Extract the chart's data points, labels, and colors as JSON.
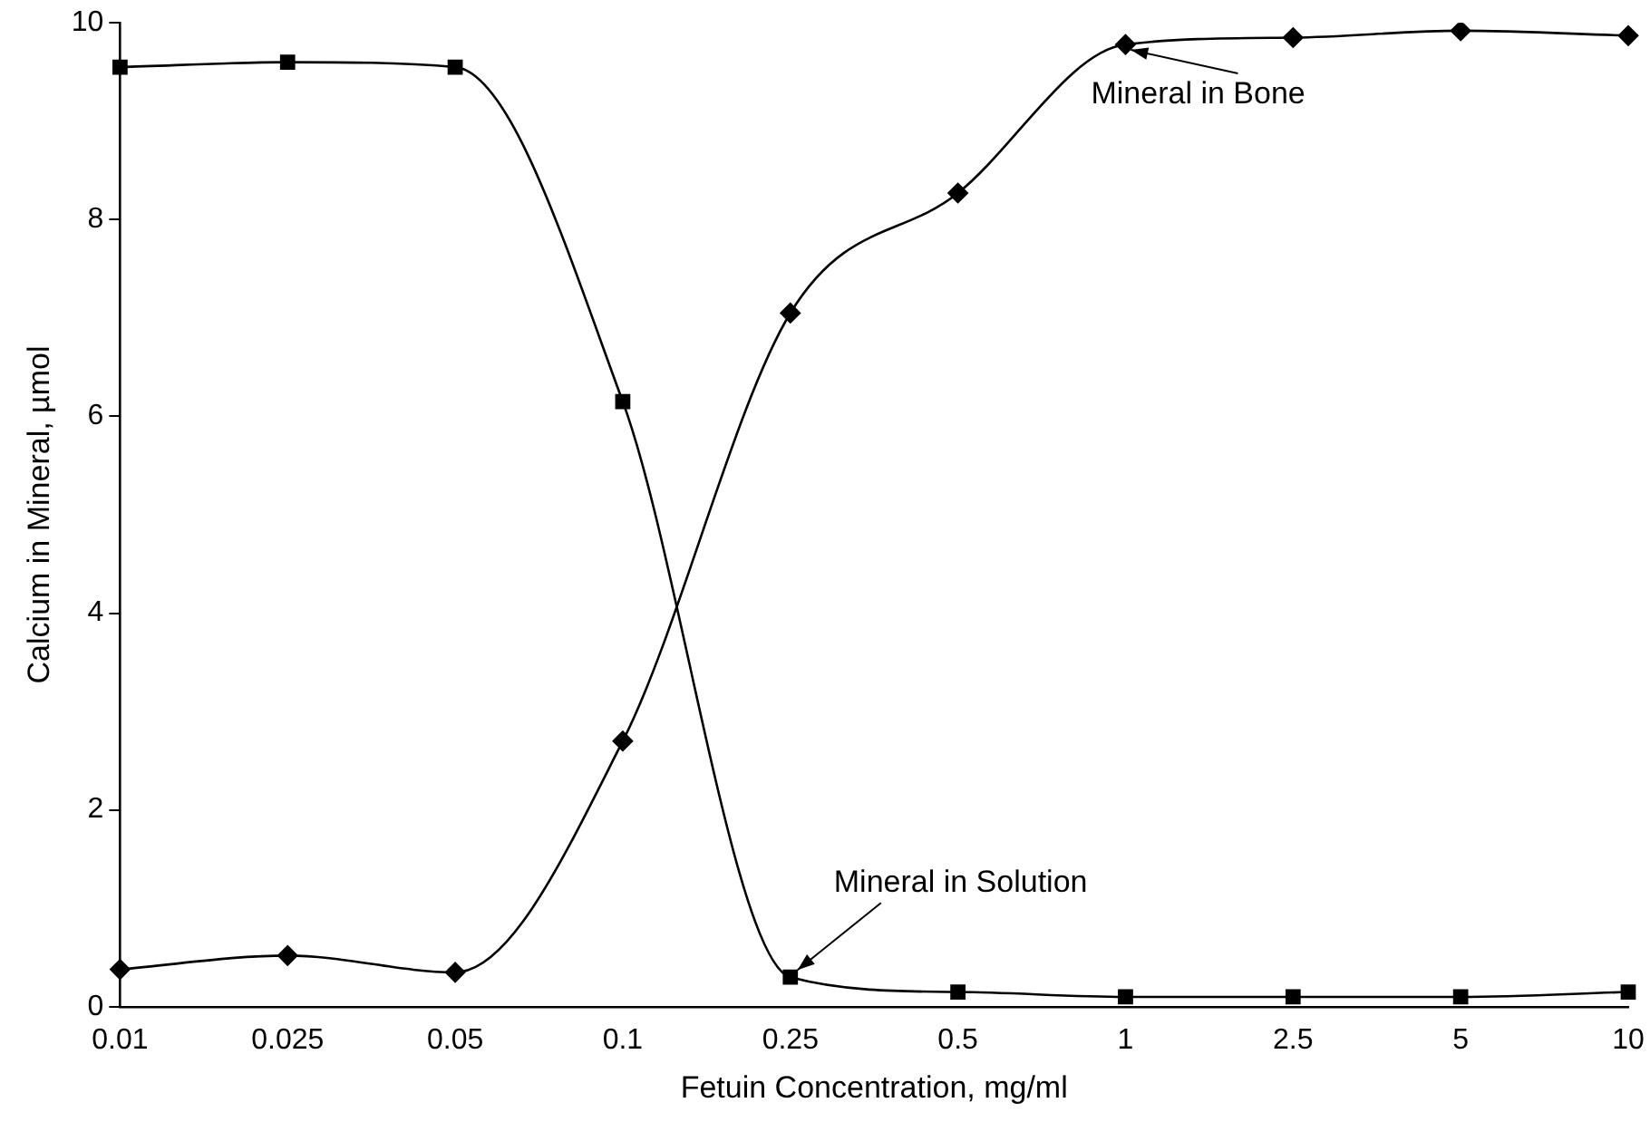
{
  "chart_data": {
    "type": "line",
    "xlabel": "Fetuin Concentration, mg/ml",
    "ylabel": "Calcium in Mineral, µmol",
    "categories": [
      "0.01",
      "0.025",
      "0.05",
      "0.1",
      "0.25",
      "0.5",
      "1",
      "2.5",
      "5",
      "10"
    ],
    "annotations": [
      {
        "text": "Mineral in Bone",
        "x": "1",
        "y": 9.78
      },
      {
        "text": "Mineral in Solution",
        "x": "0.25",
        "y": 0.3
      }
    ],
    "ylim": [
      0,
      10
    ],
    "yticks": [
      0,
      2,
      4,
      6,
      8,
      10
    ],
    "grid": false,
    "legend": false,
    "series": [
      {
        "color": "#000000",
        "marker": "square",
        "values": [
          9.55,
          9.6,
          9.55,
          6.15,
          0.3,
          0.15,
          0.1,
          0.1,
          0.1,
          0.15
        ]
      },
      {
        "color": "#000000",
        "marker": "diamond",
        "values": [
          0.38,
          0.52,
          0.35,
          2.7,
          7.05,
          8.27,
          9.78,
          9.85,
          9.92,
          9.87
        ]
      }
    ]
  }
}
